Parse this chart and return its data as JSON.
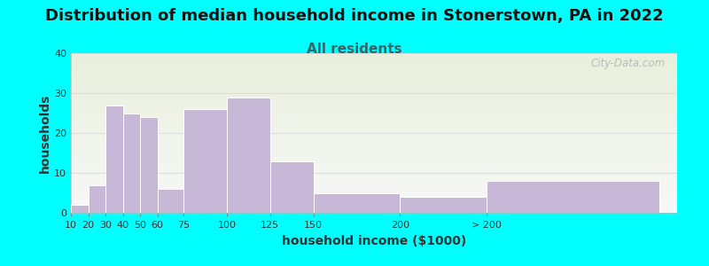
{
  "title": "Distribution of median household income in Stonerstown, PA in 2022",
  "subtitle": "All residents",
  "xlabel": "household income ($1000)",
  "ylabel": "households",
  "bar_values": [
    2,
    7,
    27,
    25,
    24,
    6,
    26,
    29,
    13,
    5,
    4,
    8
  ],
  "bar_widths": [
    10,
    10,
    10,
    10,
    10,
    15,
    25,
    25,
    25,
    50,
    50,
    100
  ],
  "bar_lefts": [
    10,
    20,
    30,
    40,
    50,
    60,
    75,
    100,
    125,
    150,
    200,
    250
  ],
  "bar_color": "#c8b8d8",
  "bar_edgecolor": "#ffffff",
  "bg_color": "#00ffff",
  "plot_bg_top": "#e8f0dc",
  "plot_bg_bottom": "#f8f8f8",
  "ylim": [
    0,
    40
  ],
  "yticks": [
    0,
    10,
    20,
    30,
    40
  ],
  "xlim": [
    10,
    360
  ],
  "xtick_positions": [
    10,
    20,
    30,
    40,
    50,
    60,
    75,
    100,
    125,
    150,
    200,
    250
  ],
  "xtick_labels": [
    "10",
    "20",
    "30",
    "40",
    "50",
    "60",
    "75",
    "100",
    "125",
    "150",
    "200",
    "> 200"
  ],
  "title_fontsize": 13,
  "subtitle_fontsize": 11,
  "subtitle_color": "#336666",
  "axis_label_fontsize": 10,
  "tick_fontsize": 8,
  "watermark_text": "City-Data.com",
  "watermark_color": "#aaaaaa",
  "grid_color": "#dddddd"
}
